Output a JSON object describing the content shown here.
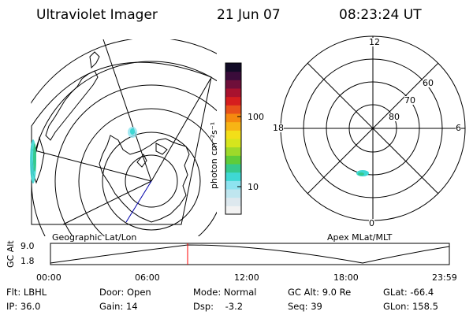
{
  "header": {
    "title": "Ultraviolet Imager",
    "date": "21 Jun 07",
    "time": "08:23:24 UT"
  },
  "colorbar": {
    "unit_label": "photon cm⁻²s⁻¹",
    "ticks": [
      "100",
      "10"
    ],
    "colors": [
      "#f2f2f2",
      "#dde8ee",
      "#bfe6ef",
      "#8ee3f0",
      "#3fd8d4",
      "#36c98c",
      "#5fcc3a",
      "#9ed92a",
      "#d6e51d",
      "#f3df18",
      "#f7b415",
      "#f58a0f",
      "#e8521a",
      "#d61e1e",
      "#a8122e",
      "#6f0f3a",
      "#3a0c3a",
      "#120b26"
    ]
  },
  "left_map": {
    "label": "Geographic Lat/Lon"
  },
  "right_map": {
    "label": "Apex MLat/MLT",
    "mlt": {
      "top": "12",
      "bottom": "0",
      "left": "18",
      "right": "6"
    },
    "mlat": [
      "60",
      "70",
      "80"
    ]
  },
  "timeline": {
    "ylabel": "GC Alt",
    "y_ticks": [
      "9.0",
      "1.8"
    ],
    "x_ticks": [
      "00:00",
      "06:00",
      "12:00",
      "18:00",
      "23:59"
    ],
    "marker_color": "#ff0000"
  },
  "footer": {
    "filter": "Flt: LBHL",
    "door": "Door: Open",
    "mode": "Mode: Normal",
    "gc_alt": "GC Alt: 9.0 Re",
    "glat": "GLat: -66.4",
    "ip": "IP: 36.0",
    "gain": "Gain: 14",
    "dsp": "Dsp:    -3.2",
    "seq": "Seq: 39",
    "glon": "GLon: 158.5"
  }
}
